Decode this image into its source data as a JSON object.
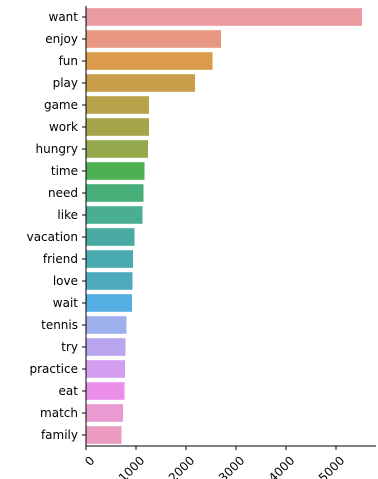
{
  "chart_data": {
    "type": "bar",
    "orientation": "horizontal",
    "categories": [
      "want",
      "enjoy",
      "fun",
      "play",
      "game",
      "work",
      "hungry",
      "time",
      "need",
      "like",
      "vacation",
      "friend",
      "love",
      "wait",
      "tennis",
      "try",
      "practice",
      "eat",
      "match",
      "family"
    ],
    "values": [
      5520,
      2700,
      2530,
      2180,
      1260,
      1260,
      1240,
      1170,
      1150,
      1130,
      970,
      940,
      930,
      920,
      810,
      790,
      780,
      770,
      740,
      710
    ],
    "colors": [
      "#ea9aa1",
      "#e89783",
      "#dc9a4d",
      "#c89d49",
      "#b9a34a",
      "#a6a54b",
      "#93a94b",
      "#4db151",
      "#48ae79",
      "#4aaf92",
      "#4aa9a1",
      "#49aab0",
      "#4dabbd",
      "#55aee1",
      "#9db0eb",
      "#b8a5ee",
      "#d49ef0",
      "#ea8eea",
      "#e99bd1",
      "#ea9bbf"
    ],
    "xticks": [
      0,
      1000,
      2000,
      3000,
      4000,
      5000
    ],
    "xlim": [
      0,
      5800
    ],
    "title": "",
    "xlabel": "",
    "ylabel": "",
    "grid": false,
    "legend": "none"
  }
}
